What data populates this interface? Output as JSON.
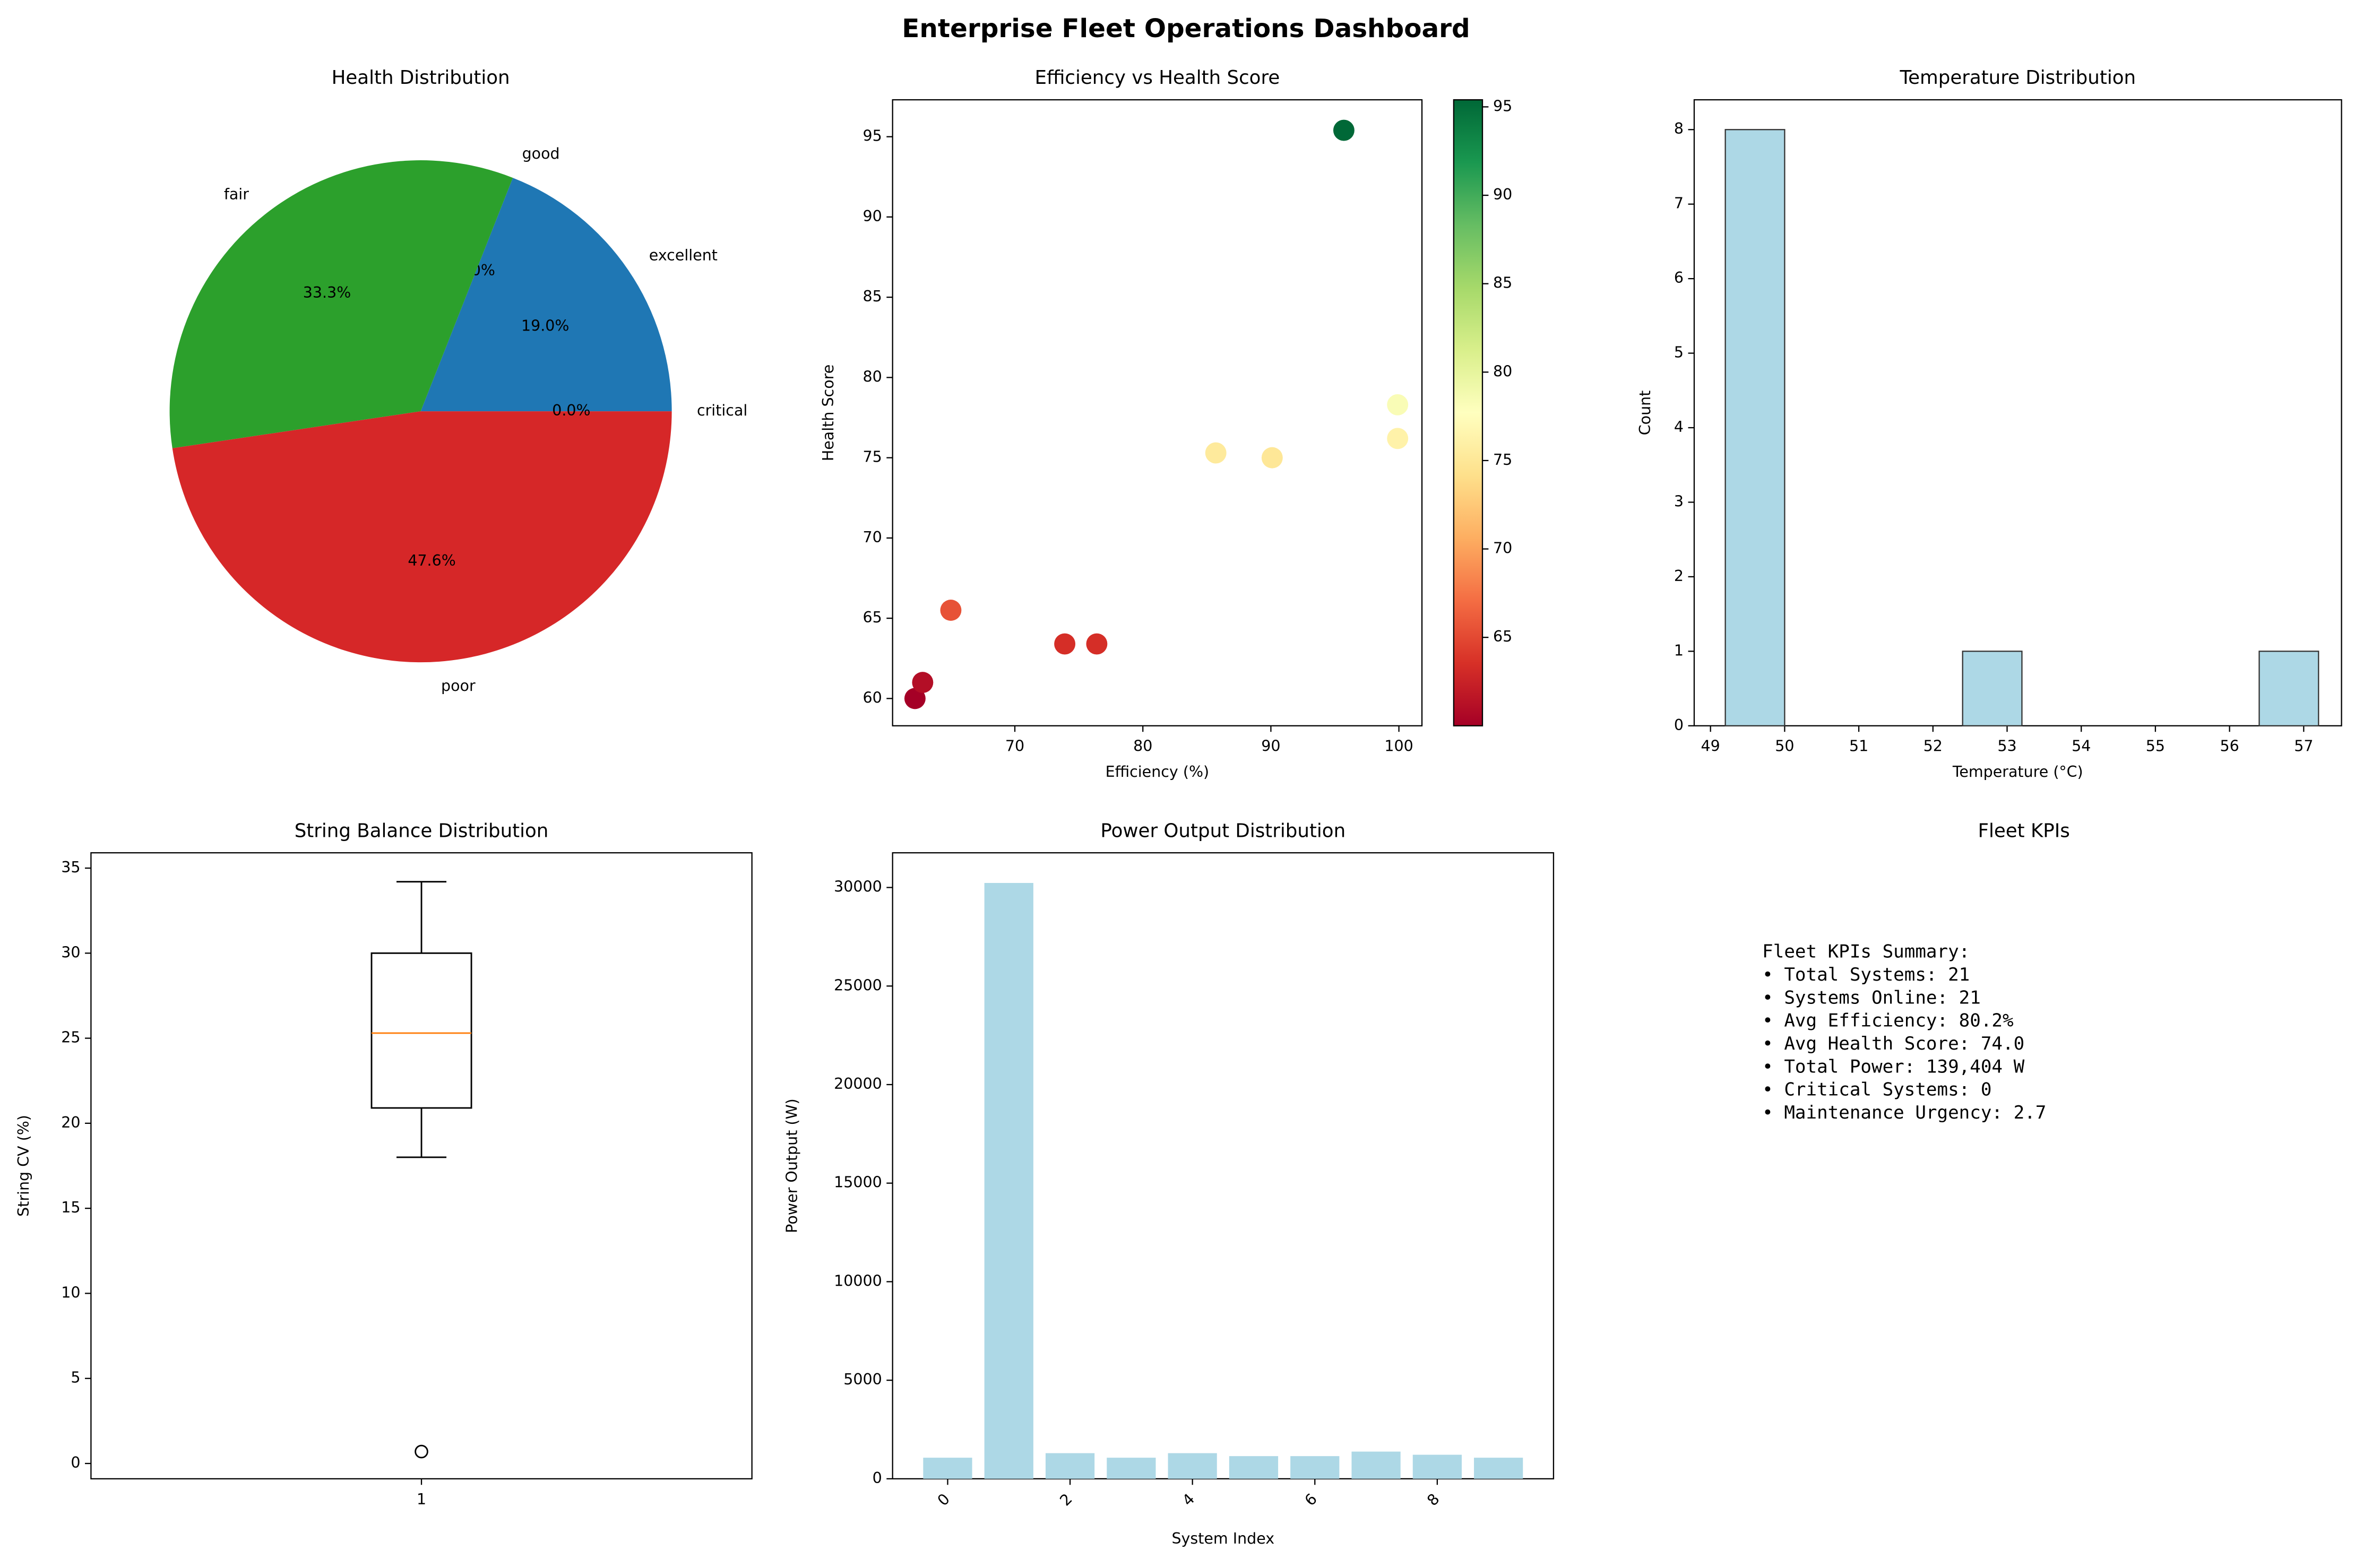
{
  "title": "Enterprise Fleet Operations Dashboard",
  "chart_data": [
    {
      "type": "pie",
      "title": "Health Distribution",
      "categories": [
        "excellent",
        "good",
        "fair",
        "poor",
        "critical"
      ],
      "values": [
        19.0,
        0.0,
        33.3,
        47.6,
        0.0
      ],
      "value_labels": [
        "19.0%",
        "0.0%",
        "33.3%",
        "47.6%",
        "0.0%"
      ],
      "colors": [
        "#1f77b4",
        "#ff7f0e",
        "#2ca02c",
        "#d62728",
        "#9467bd"
      ]
    },
    {
      "type": "scatter",
      "title": "Efficiency vs Health Score",
      "xlabel": "Efficiency (%)",
      "ylabel": "Health Score",
      "x": [
        62.2,
        62.8,
        65.0,
        73.9,
        76.4,
        85.7,
        90.1,
        99.9,
        99.9,
        95.7
      ],
      "y": [
        60.0,
        61.0,
        65.5,
        63.4,
        63.4,
        75.3,
        75.0,
        78.3,
        76.2,
        95.4
      ],
      "colormap": "RdYlGn",
      "clim": [
        60.0,
        95.4
      ],
      "cticks": [
        65,
        70,
        75,
        80,
        85,
        90,
        95
      ],
      "xlim": [
        60.45,
        101.8
      ],
      "ylim": [
        58.3,
        97.3
      ],
      "xticks": [
        70,
        80,
        90,
        100
      ],
      "yticks": [
        60,
        65,
        70,
        75,
        80,
        85,
        90,
        95
      ]
    },
    {
      "type": "histogram",
      "title": "Temperature Distribution",
      "xlabel": "Temperature (°C)",
      "ylabel": "Count",
      "bins": [
        49.2,
        50.0,
        50.8,
        51.6,
        52.4,
        53.2,
        54.0,
        54.8,
        55.6,
        56.4,
        57.2
      ],
      "counts": [
        8,
        0,
        0,
        0,
        1,
        0,
        0,
        0,
        0,
        1
      ],
      "color": "#add8e6",
      "xlim": [
        48.78,
        57.51
      ],
      "ylim": [
        0,
        8.4
      ],
      "xticks": [
        49,
        50,
        51,
        52,
        53,
        54,
        55,
        56,
        57
      ],
      "yticks": [
        0,
        1,
        2,
        3,
        4,
        5,
        6,
        7,
        8
      ]
    },
    {
      "type": "box",
      "title": "String Balance Distribution",
      "ylabel": "String CV (%)",
      "categories": [
        "1"
      ],
      "boxes": [
        {
          "whislo": 18.0,
          "q1": 20.9,
          "median": 25.3,
          "q3": 30.0,
          "whishi": 34.2,
          "fliers": [
            0.7
          ]
        }
      ],
      "median_color": "#ff7f0e",
      "ylim": [
        -0.9,
        35.9
      ],
      "yticks": [
        0,
        5,
        10,
        15,
        20,
        25,
        30,
        35
      ]
    },
    {
      "type": "bar",
      "title": "Power Output Distribution",
      "xlabel": "System Index",
      "ylabel": "Power Output (W)",
      "x": [
        0,
        1,
        2,
        3,
        4,
        5,
        6,
        7,
        8,
        9
      ],
      "values": [
        1070,
        30230,
        1300,
        1070,
        1300,
        1150,
        1150,
        1380,
        1220,
        1070
      ],
      "color": "#add8e6",
      "xlim": [
        -0.9,
        9.9
      ],
      "ylim": [
        0,
        31760
      ],
      "xticks": [
        0,
        2,
        4,
        6,
        8
      ],
      "yticks": [
        0,
        5000,
        10000,
        15000,
        20000,
        25000,
        30000
      ]
    }
  ],
  "kpi_panel": {
    "title": "Fleet KPIs",
    "lines": [
      "Fleet KPIs Summary:",
      "• Total Systems: 21",
      "• Systems Online: 21",
      "• Avg Efficiency: 80.2%",
      "• Avg Health Score: 74.0",
      "• Total Power: 139,404 W",
      "• Critical Systems: 0",
      "• Maintenance Urgency: 2.7"
    ]
  }
}
